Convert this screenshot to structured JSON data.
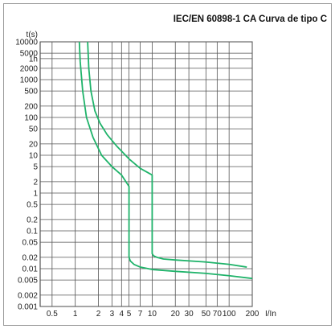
{
  "chart_data": {
    "type": "line",
    "title": "IEC/EN 60898-1 CA Curva de tipo C",
    "xlabel": "I/In",
    "ylabel": "t(s)",
    "x_scale": "log",
    "y_scale": "log",
    "xlim": [
      0.35,
      200
    ],
    "ylim": [
      0.001,
      10000
    ],
    "grid": true,
    "x_ticks": [
      0.5,
      1,
      2,
      3,
      4,
      5,
      7,
      10,
      20,
      30,
      50,
      70,
      100,
      200
    ],
    "x_tick_labels": [
      "0.5",
      "1",
      "2",
      "3",
      "4",
      "5",
      "7",
      "10",
      "20",
      "30",
      "50",
      "70",
      "100",
      "200"
    ],
    "y_ticks": [
      0.001,
      0.002,
      0.005,
      0.01,
      0.02,
      0.05,
      0.1,
      0.2,
      0.5,
      1,
      2,
      5,
      10,
      20,
      50,
      100,
      200,
      500,
      1000,
      2000,
      3600,
      5000,
      10000
    ],
    "y_tick_labels": [
      "0.001",
      "0.002",
      "0.005",
      "0.01",
      "0.02",
      "0.05",
      "0.1",
      "0.2",
      "0.5",
      "1",
      "2",
      "5",
      "10",
      "20",
      "50",
      "100",
      "200",
      "500",
      "1000",
      "2000",
      "1h",
      "5000",
      "10000"
    ],
    "line_color": "#1fb36a",
    "series": [
      {
        "x": [
          1.13,
          1.16,
          1.25,
          1.4,
          1.7,
          2.2,
          3.0,
          4.0,
          5.0,
          5.0,
          5.0,
          5.2,
          5.8,
          7.0,
          10.0,
          20.0,
          50.0,
          100.0,
          200.0
        ],
        "y": [
          10000,
          3000,
          500,
          100,
          30,
          10,
          5,
          3,
          1.5,
          0.5,
          0.02,
          0.016,
          0.013,
          0.011,
          0.0095,
          0.0085,
          0.0075,
          0.0065,
          0.0055
        ]
      },
      {
        "x": [
          1.45,
          1.5,
          1.6,
          1.8,
          2.1,
          2.6,
          3.5,
          5.0,
          7.0,
          10.0,
          10.0,
          10.0,
          10.4,
          11.5,
          14.0,
          20.0,
          50.0,
          100.0,
          170.0
        ],
        "y": [
          10000,
          2000,
          500,
          150,
          70,
          35,
          17,
          8,
          4.5,
          3,
          1,
          0.025,
          0.022,
          0.02,
          0.018,
          0.017,
          0.015,
          0.013,
          0.011
        ]
      }
    ]
  }
}
